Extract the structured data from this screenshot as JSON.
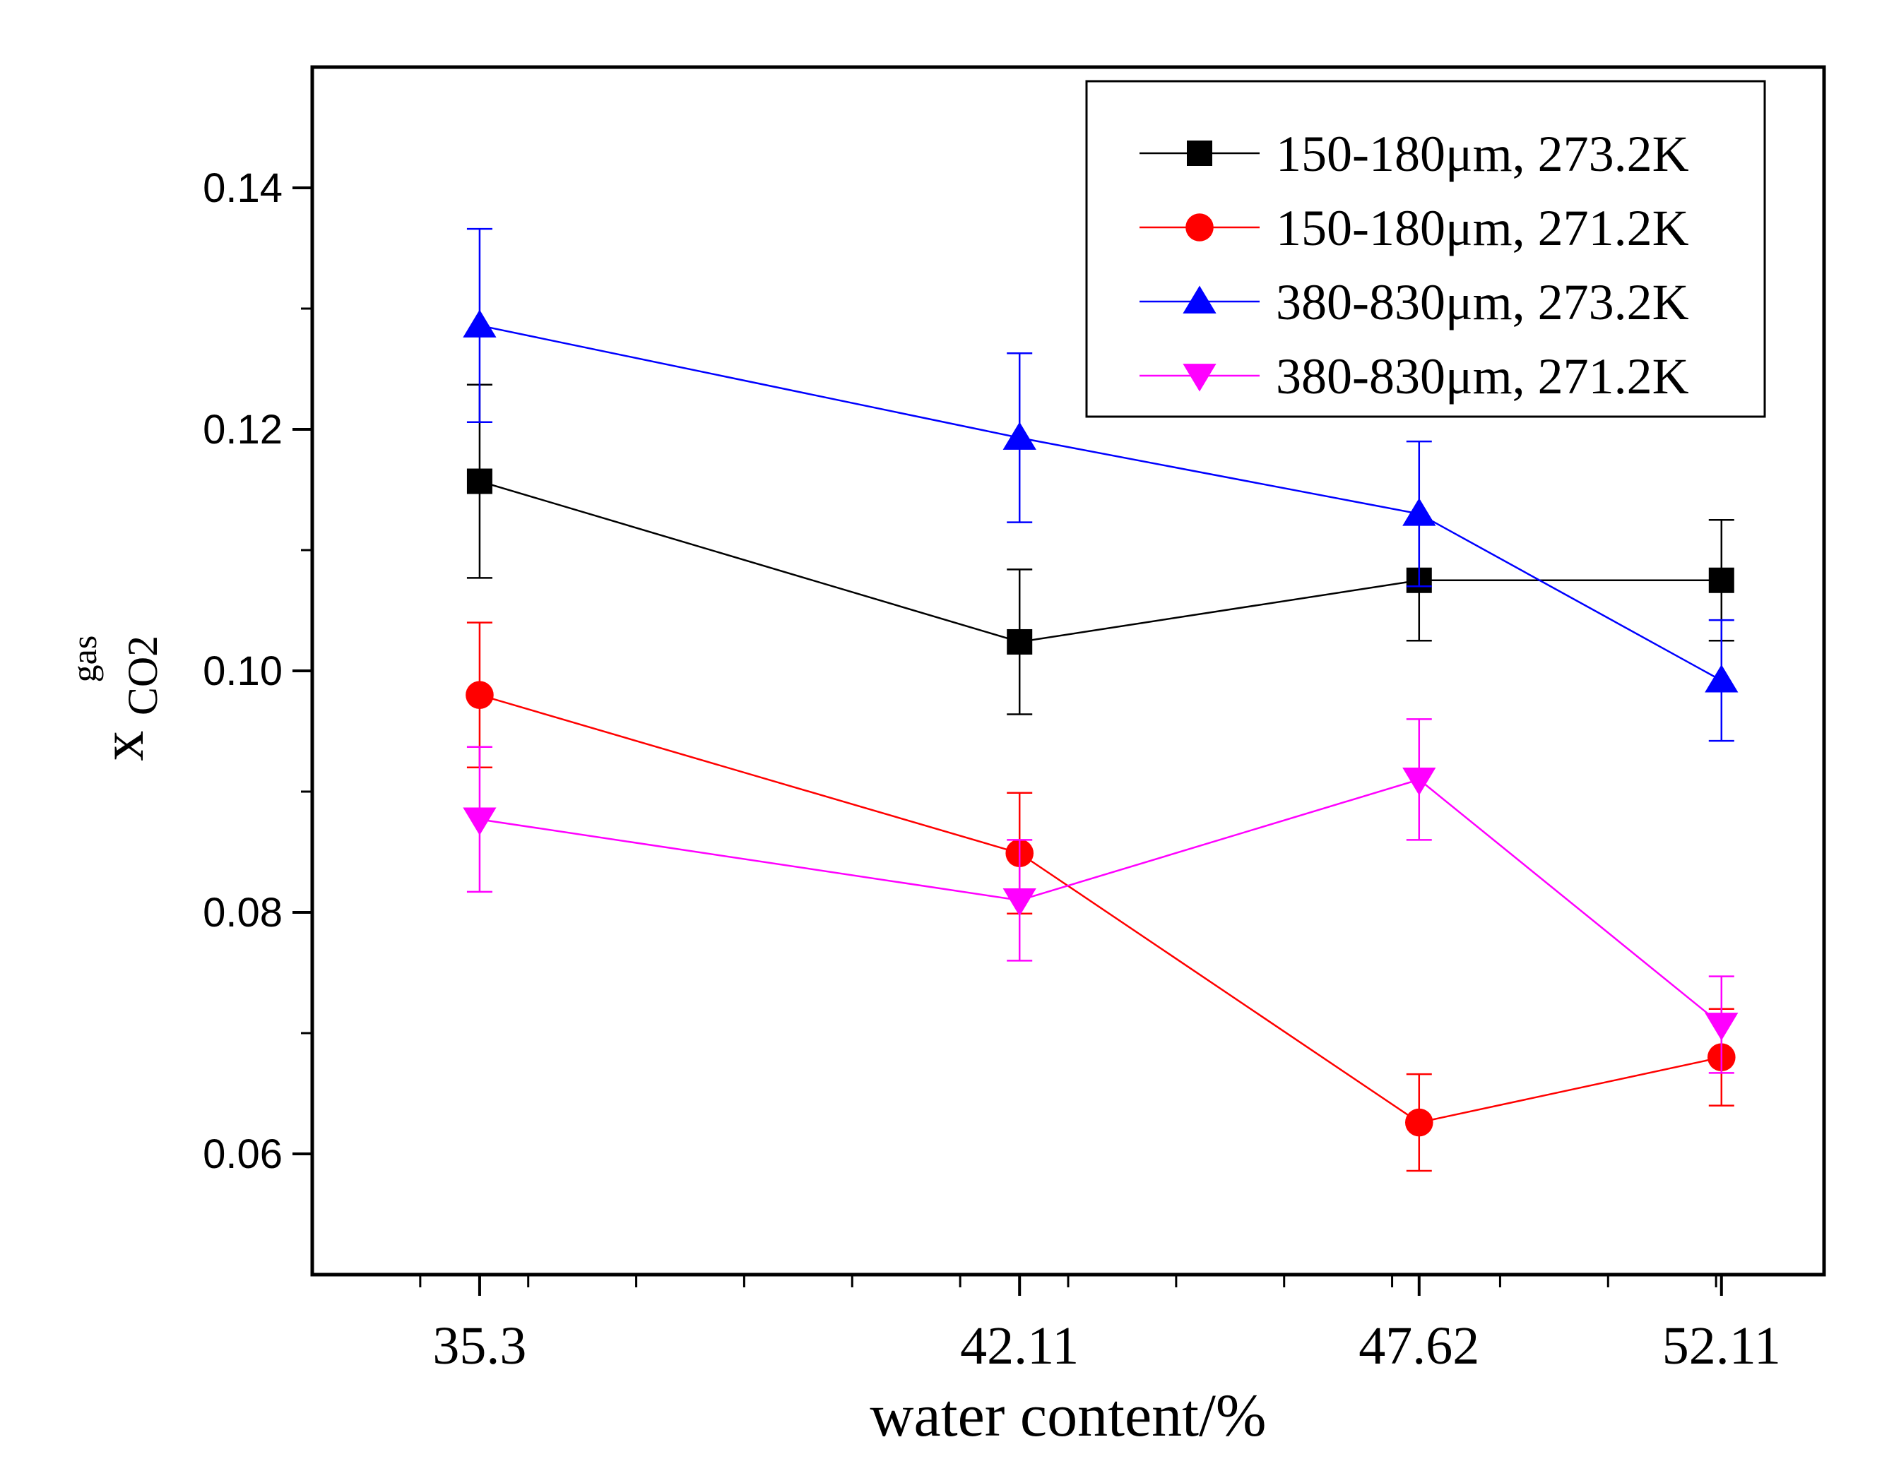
{
  "chart_data": {
    "type": "line",
    "title": "",
    "xlabel": "water content/%",
    "ylabel": {
      "main": "x",
      "sub": "CO2",
      "sup": "gas"
    },
    "categories": [
      "35.3",
      "42.11",
      "47.62",
      "52.11"
    ],
    "xlim": [
      0,
      14
    ],
    "x_positions": [
      1.55,
      6.55,
      10.25,
      13.05
    ],
    "x_minor_ticks": [
      1,
      2,
      3,
      4,
      5,
      6,
      7,
      8,
      9,
      10,
      11,
      12,
      13
    ],
    "ylim": [
      0.05,
      0.15
    ],
    "yticks": [
      0.06,
      0.08,
      0.1,
      0.12,
      0.14
    ],
    "ytick_labels": [
      "0.06",
      "0.08",
      "0.10",
      "0.12",
      "0.14"
    ],
    "y_minor_ticks": [
      0.07,
      0.09,
      0.11,
      0.13
    ],
    "grid": false,
    "legend_position": "top-right",
    "series": [
      {
        "name": "150-180μm, 273.2K",
        "color": "#000000",
        "marker": "square",
        "values": [
          0.1157,
          0.1024,
          0.1075,
          0.1075
        ],
        "errors": [
          0.008,
          0.006,
          0.005,
          0.005
        ]
      },
      {
        "name": "150-180μm, 271.2K",
        "color": "#ff0000",
        "marker": "circle",
        "values": [
          0.098,
          0.0849,
          0.0626,
          0.068
        ],
        "errors": [
          0.006,
          0.005,
          0.004,
          0.004
        ]
      },
      {
        "name": "380-830μm, 273.2K",
        "color": "#0000ff",
        "marker": "triangle-up",
        "values": [
          0.1286,
          0.1193,
          0.113,
          0.0992
        ],
        "errors": [
          0.008,
          0.007,
          0.006,
          0.005
        ]
      },
      {
        "name": "380-830μm, 271.2K",
        "color": "#ff00ff",
        "marker": "triangle-down",
        "values": [
          0.0877,
          0.081,
          0.091,
          0.0707
        ],
        "errors": [
          0.006,
          0.005,
          0.005,
          0.004
        ]
      }
    ]
  }
}
